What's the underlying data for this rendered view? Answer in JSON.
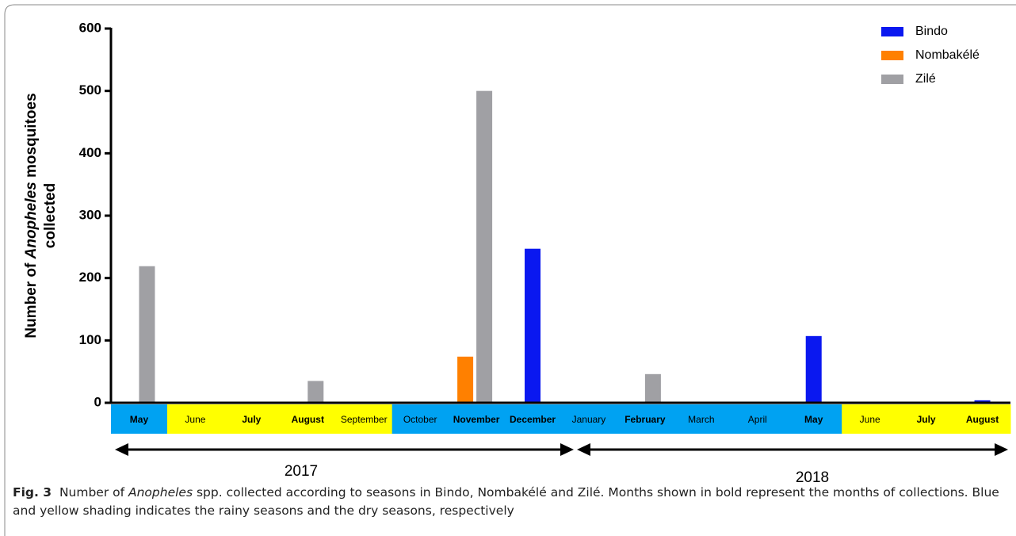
{
  "chart_data": {
    "type": "bar",
    "y_label_lines": [
      [
        "Number of ",
        "Anopheles",
        " mosquitoes"
      ],
      [
        "collected"
      ]
    ],
    "categories": [
      "May",
      "June",
      "July",
      "August",
      "September",
      "October",
      "November",
      "December",
      "January",
      "February",
      "March",
      "April",
      "May",
      "June",
      "July",
      "August"
    ],
    "bold_categories": [
      true,
      false,
      true,
      true,
      false,
      false,
      true,
      true,
      false,
      true,
      false,
      false,
      true,
      false,
      true,
      true
    ],
    "category_colors": [
      "#00a2f2",
      "#ffff00",
      "#ffff00",
      "#ffff00",
      "#ffff00",
      "#00a2f2",
      "#00a2f2",
      "#00a2f2",
      "#00a2f2",
      "#00a2f2",
      "#00a2f2",
      "#00a2f2",
      "#00a2f2",
      "#ffff00",
      "#ffff00",
      "#ffff00"
    ],
    "series": [
      {
        "name": "Bindo",
        "color": "#0a18f0",
        "values": [
          null,
          null,
          null,
          null,
          null,
          null,
          null,
          247,
          null,
          null,
          null,
          null,
          107,
          null,
          null,
          4
        ]
      },
      {
        "name": "Nombakélé",
        "color": "#ff8000",
        "values": [
          null,
          null,
          null,
          null,
          null,
          null,
          74,
          null,
          null,
          null,
          null,
          null,
          null,
          null,
          null,
          null
        ]
      },
      {
        "name": "Zilé",
        "color": "#a0a0a4",
        "values": [
          219,
          null,
          null,
          35,
          null,
          null,
          500,
          null,
          null,
          46,
          null,
          null,
          null,
          null,
          null,
          null
        ]
      }
    ],
    "ylim": [
      0,
      600
    ],
    "yticks": [
      0,
      100,
      200,
      300,
      400,
      500,
      600
    ],
    "legend": "top-right",
    "years": [
      "2017",
      "2018"
    ],
    "caption": {
      "label": "Fig. 3",
      "parts": [
        "Number of ",
        "Anopheles",
        " spp. collected according to seasons in Bindo, Nombakélé and Zilé. Months shown in bold represent the months of collections. Blue and yellow shading indicates the rainy seasons and the dry seasons, respectively"
      ]
    }
  }
}
